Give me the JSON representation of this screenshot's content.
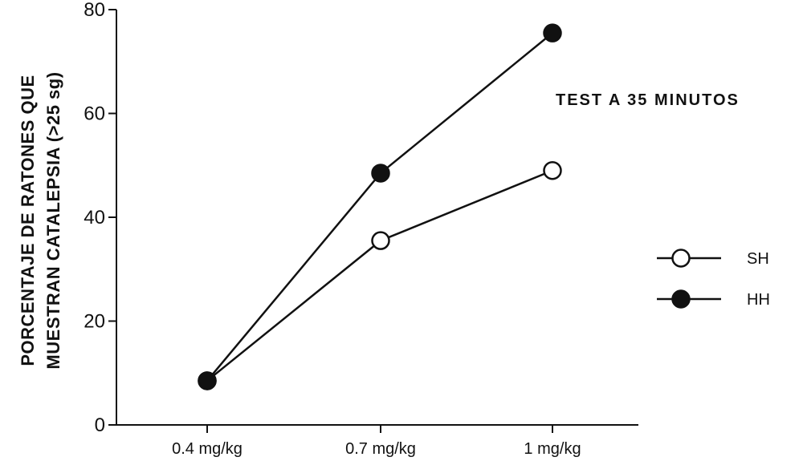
{
  "chart_data": {
    "type": "line",
    "title": "",
    "annotation": "TEST A 35 MINUTOS",
    "ylabel_line1": "PORCENTAJE DE RATONES QUE",
    "ylabel_line2": "MUESTRAN  CATALEPSIA  (>25 sg)",
    "xlabel": "",
    "categories": [
      "0.4  mg/kg",
      "0.7  mg/kg",
      "1  mg/kg"
    ],
    "ylim": [
      0,
      80
    ],
    "yticks": [
      "0",
      "20",
      "40",
      "60",
      "80"
    ],
    "grid": false,
    "legend_position": "right",
    "series": [
      {
        "name": "SH",
        "marker": "open-circle",
        "values": [
          8.5,
          35.5,
          49
        ]
      },
      {
        "name": "HH",
        "marker": "filled-circle",
        "values": [
          8.5,
          48.5,
          75.5
        ]
      }
    ]
  }
}
